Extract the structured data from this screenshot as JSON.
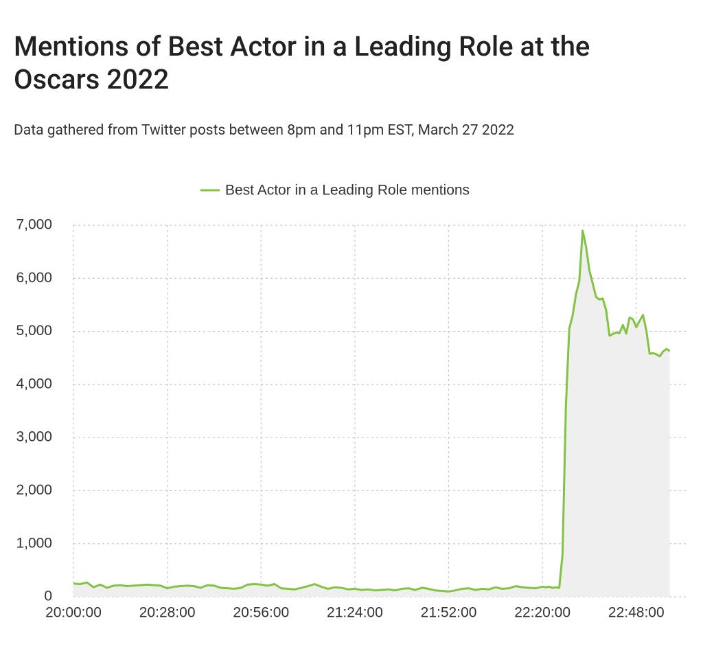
{
  "chart_data": {
    "type": "line",
    "title": "Mentions of Best Actor in a Leading Role at the Oscars 2022",
    "subtitle": "Data gathered from Twitter posts between 8pm and 11pm EST, March 27 2022",
    "x": [
      "20:00:00",
      "20:02:00",
      "20:04:00",
      "20:06:00",
      "20:08:00",
      "20:10:00",
      "20:12:00",
      "20:14:00",
      "20:16:00",
      "20:18:00",
      "20:20:00",
      "20:22:00",
      "20:24:00",
      "20:26:00",
      "20:28:00",
      "20:30:00",
      "20:32:00",
      "20:34:00",
      "20:36:00",
      "20:38:00",
      "20:40:00",
      "20:42:00",
      "20:44:00",
      "20:46:00",
      "20:48:00",
      "20:50:00",
      "20:52:00",
      "20:54:00",
      "20:56:00",
      "20:58:00",
      "21:00:00",
      "21:02:00",
      "21:04:00",
      "21:06:00",
      "21:08:00",
      "21:10:00",
      "21:12:00",
      "21:14:00",
      "21:16:00",
      "21:18:00",
      "21:20:00",
      "21:22:00",
      "21:24:00",
      "21:26:00",
      "21:28:00",
      "21:30:00",
      "21:32:00",
      "21:34:00",
      "21:36:00",
      "21:38:00",
      "21:40:00",
      "21:42:00",
      "21:44:00",
      "21:46:00",
      "21:48:00",
      "21:50:00",
      "21:52:00",
      "21:54:00",
      "21:56:00",
      "21:58:00",
      "22:00:00",
      "22:02:00",
      "22:04:00",
      "22:06:00",
      "22:08:00",
      "22:10:00",
      "22:12:00",
      "22:14:00",
      "22:16:00",
      "22:18:00",
      "22:20:00",
      "22:21:00",
      "22:22:00",
      "22:23:00",
      "22:24:00",
      "22:25:00",
      "22:26:00",
      "22:27:00",
      "22:28:00",
      "22:29:00",
      "22:30:00",
      "22:31:00",
      "22:32:00",
      "22:33:00",
      "22:34:00",
      "22:35:00",
      "22:36:00",
      "22:37:00",
      "22:38:00",
      "22:39:00",
      "22:40:00",
      "22:41:00",
      "22:42:00",
      "22:43:00",
      "22:44:00",
      "22:45:00",
      "22:46:00",
      "22:47:00",
      "22:48:00",
      "22:49:00",
      "22:50:00",
      "22:51:00",
      "22:52:00",
      "22:53:00",
      "22:54:00",
      "22:55:00",
      "22:56:00",
      "22:57:00",
      "22:58:00"
    ],
    "series": [
      {
        "name": "Best Actor in a Leading Role mentions",
        "color": "#82c341",
        "values": [
          250,
          240,
          270,
          180,
          230,
          170,
          210,
          220,
          200,
          210,
          220,
          230,
          220,
          210,
          160,
          190,
          200,
          210,
          200,
          170,
          220,
          210,
          170,
          160,
          150,
          170,
          230,
          240,
          230,
          210,
          240,
          160,
          150,
          140,
          170,
          200,
          240,
          190,
          150,
          180,
          170,
          140,
          150,
          130,
          140,
          120,
          130,
          140,
          120,
          150,
          160,
          130,
          170,
          150,
          120,
          110,
          100,
          120,
          150,
          160,
          130,
          150,
          140,
          180,
          150,
          160,
          200,
          180,
          170,
          160,
          190,
          180,
          190,
          170,
          180,
          170,
          800,
          3600,
          5050,
          5300,
          5700,
          5950,
          6900,
          6600,
          6150,
          5900,
          5650,
          5600,
          5620,
          5400,
          4920,
          4950,
          4980,
          4970,
          5120,
          4960,
          5260,
          5230,
          5080,
          5200,
          5310,
          5020,
          4580,
          4590,
          4570,
          4530,
          4620,
          4670,
          4630
        ]
      }
    ],
    "xlim": [
      "20:00:00",
      "23:03:00"
    ],
    "xticks": [
      "20:00:00",
      "20:28:00",
      "20:56:00",
      "21:24:00",
      "21:52:00",
      "22:20:00",
      "22:48:00"
    ],
    "ylim": [
      0,
      7000
    ],
    "yticks": [
      0,
      {
        "value": 1000,
        "label": "1,000"
      },
      {
        "value": 2000,
        "label": "2,000"
      },
      {
        "value": 3000,
        "label": "3,000"
      },
      {
        "value": 4000,
        "label": "4,000"
      },
      {
        "value": 5000,
        "label": "5,000"
      },
      {
        "value": 6000,
        "label": "6,000"
      },
      {
        "value": 7000,
        "label": "7,000"
      }
    ],
    "grid": true,
    "area_fill": "#efefef",
    "legend": "top"
  }
}
